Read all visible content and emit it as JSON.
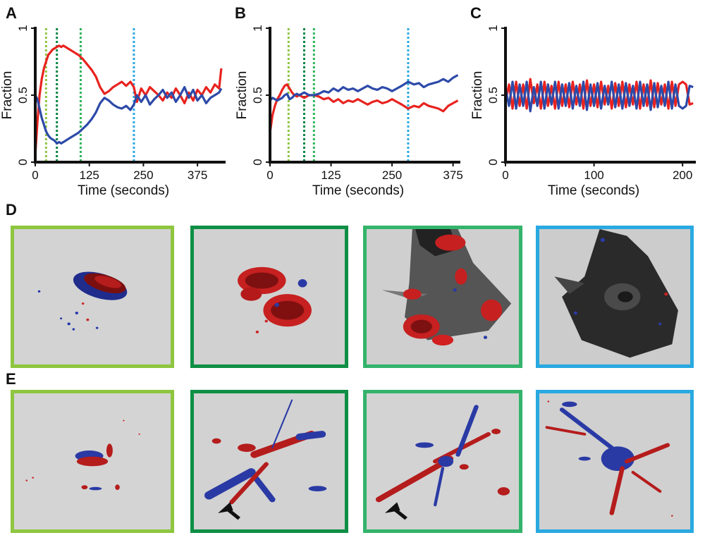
{
  "panel_labels": {
    "a": "A",
    "b": "B",
    "c": "C",
    "d": "D",
    "e": "E"
  },
  "colors": {
    "red_series": "#e8231f",
    "blue_series": "#2d4aa8",
    "marker_1": "#8ec63f",
    "marker_2": "#00853f",
    "marker_3": "#2cb55a",
    "marker_4": "#29a9e1",
    "frame_1": "#8ec63f",
    "frame_2": "#0e8f45",
    "frame_3": "#34b36b",
    "frame_4": "#29a9e1"
  },
  "chart_data": [
    {
      "id": "A",
      "type": "line",
      "xlabel": "Time (seconds)",
      "ylabel": "Fraction",
      "xlim": [
        0,
        440
      ],
      "ylim": [
        0,
        1
      ],
      "xticks": [
        0,
        125,
        250,
        375
      ],
      "yticks": [
        0,
        0.5,
        1
      ],
      "yticklabels": [
        "0",
        "0.5",
        "1"
      ],
      "markers": [
        {
          "x": 25,
          "color_key": "marker_1"
        },
        {
          "x": 50,
          "color_key": "marker_2"
        },
        {
          "x": 105,
          "color_key": "marker_3"
        },
        {
          "x": 228,
          "color_key": "marker_4"
        }
      ],
      "series": [
        {
          "name": "red",
          "color_key": "red_series",
          "x": [
            0,
            5,
            10,
            15,
            20,
            25,
            30,
            35,
            40,
            45,
            50,
            55,
            60,
            65,
            70,
            75,
            80,
            90,
            100,
            110,
            120,
            130,
            140,
            150,
            160,
            170,
            180,
            190,
            200,
            210,
            220,
            228,
            235,
            245,
            255,
            265,
            275,
            285,
            295,
            305,
            315,
            325,
            335,
            345,
            355,
            365,
            375,
            385,
            395,
            405,
            415,
            425,
            430
          ],
          "y": [
            0.05,
            0.3,
            0.5,
            0.62,
            0.7,
            0.75,
            0.8,
            0.82,
            0.84,
            0.85,
            0.86,
            0.87,
            0.86,
            0.87,
            0.86,
            0.85,
            0.84,
            0.82,
            0.8,
            0.77,
            0.73,
            0.69,
            0.64,
            0.56,
            0.51,
            0.53,
            0.56,
            0.58,
            0.6,
            0.57,
            0.6,
            0.56,
            0.45,
            0.55,
            0.5,
            0.56,
            0.53,
            0.5,
            0.46,
            0.52,
            0.48,
            0.55,
            0.5,
            0.44,
            0.52,
            0.46,
            0.54,
            0.5,
            0.56,
            0.52,
            0.58,
            0.55,
            0.7
          ]
        },
        {
          "name": "blue",
          "color_key": "blue_series",
          "x": [
            0,
            5,
            10,
            15,
            20,
            25,
            30,
            35,
            40,
            45,
            50,
            55,
            60,
            65,
            70,
            75,
            80,
            90,
            100,
            110,
            120,
            130,
            140,
            150,
            160,
            170,
            180,
            190,
            200,
            210,
            220,
            228,
            235,
            245,
            255,
            265,
            275,
            285,
            295,
            305,
            315,
            325,
            335,
            345,
            355,
            365,
            375,
            385,
            395,
            405,
            415,
            425,
            430
          ],
          "y": [
            0.5,
            0.47,
            0.4,
            0.33,
            0.28,
            0.23,
            0.2,
            0.18,
            0.17,
            0.16,
            0.14,
            0.15,
            0.14,
            0.15,
            0.16,
            0.17,
            0.18,
            0.2,
            0.22,
            0.25,
            0.28,
            0.32,
            0.37,
            0.44,
            0.48,
            0.46,
            0.43,
            0.41,
            0.4,
            0.42,
            0.39,
            0.43,
            0.5,
            0.45,
            0.5,
            0.43,
            0.47,
            0.5,
            0.54,
            0.48,
            0.52,
            0.45,
            0.5,
            0.56,
            0.48,
            0.54,
            0.46,
            0.5,
            0.44,
            0.48,
            0.5,
            0.52,
            0.55
          ]
        }
      ]
    },
    {
      "id": "B",
      "type": "line",
      "xlabel": "Time (seconds)",
      "ylabel": "Fraction",
      "xlim": [
        0,
        390
      ],
      "ylim": [
        0,
        1
      ],
      "xticks": [
        0,
        125,
        250,
        375
      ],
      "yticks": [
        0,
        0.5,
        1
      ],
      "yticklabels": [
        "0",
        "0.5",
        "1"
      ],
      "markers": [
        {
          "x": 38,
          "color_key": "marker_1"
        },
        {
          "x": 70,
          "color_key": "marker_2"
        },
        {
          "x": 90,
          "color_key": "marker_3"
        },
        {
          "x": 283,
          "color_key": "marker_4"
        }
      ],
      "series": [
        {
          "name": "red",
          "color_key": "red_series",
          "x": [
            0,
            5,
            10,
            15,
            20,
            25,
            30,
            35,
            40,
            45,
            50,
            55,
            60,
            70,
            80,
            90,
            100,
            110,
            120,
            130,
            140,
            150,
            160,
            170,
            180,
            190,
            200,
            210,
            220,
            230,
            240,
            250,
            260,
            270,
            283,
            295,
            305,
            315,
            325,
            335,
            345,
            355,
            365,
            375,
            385
          ],
          "y": [
            0.22,
            0.35,
            0.42,
            0.47,
            0.5,
            0.54,
            0.57,
            0.58,
            0.55,
            0.52,
            0.5,
            0.49,
            0.5,
            0.48,
            0.5,
            0.5,
            0.49,
            0.47,
            0.48,
            0.45,
            0.47,
            0.44,
            0.46,
            0.45,
            0.47,
            0.45,
            0.43,
            0.45,
            0.46,
            0.44,
            0.45,
            0.47,
            0.45,
            0.43,
            0.4,
            0.42,
            0.41,
            0.44,
            0.42,
            0.41,
            0.4,
            0.38,
            0.42,
            0.44,
            0.46
          ]
        },
        {
          "name": "blue",
          "color_key": "blue_series",
          "x": [
            0,
            5,
            10,
            15,
            20,
            25,
            30,
            35,
            40,
            45,
            50,
            55,
            60,
            70,
            80,
            90,
            100,
            110,
            120,
            130,
            140,
            150,
            160,
            170,
            180,
            190,
            200,
            210,
            220,
            230,
            240,
            250,
            260,
            270,
            283,
            295,
            305,
            315,
            325,
            335,
            345,
            355,
            365,
            375,
            385
          ],
          "y": [
            0.46,
            0.48,
            0.47,
            0.46,
            0.47,
            0.48,
            0.5,
            0.51,
            0.47,
            0.48,
            0.5,
            0.51,
            0.5,
            0.52,
            0.5,
            0.5,
            0.51,
            0.53,
            0.52,
            0.55,
            0.53,
            0.56,
            0.54,
            0.55,
            0.53,
            0.55,
            0.57,
            0.55,
            0.54,
            0.56,
            0.55,
            0.53,
            0.55,
            0.57,
            0.6,
            0.58,
            0.59,
            0.56,
            0.58,
            0.59,
            0.6,
            0.62,
            0.6,
            0.63,
            0.65
          ]
        }
      ]
    },
    {
      "id": "C",
      "type": "line",
      "xlabel": "Time (seconds)",
      "ylabel": "Fraction",
      "xlim": [
        0,
        215
      ],
      "ylim": [
        0,
        1
      ],
      "xticks": [
        0,
        100,
        200
      ],
      "yticks": [
        0,
        0.5,
        1
      ],
      "yticklabels": [
        "0",
        "0.5",
        "1"
      ],
      "markers": [],
      "series": [
        {
          "name": "red",
          "color_key": "red_series",
          "x": [
            0,
            4,
            8,
            12,
            16,
            20,
            24,
            28,
            32,
            36,
            40,
            44,
            48,
            52,
            56,
            60,
            64,
            68,
            72,
            76,
            80,
            84,
            88,
            92,
            96,
            100,
            104,
            108,
            112,
            116,
            120,
            124,
            128,
            132,
            136,
            140,
            144,
            148,
            152,
            156,
            160,
            164,
            168,
            172,
            176,
            180,
            184,
            188,
            192,
            196,
            200,
            204,
            208,
            212
          ],
          "y": [
            0.45,
            0.58,
            0.4,
            0.6,
            0.42,
            0.58,
            0.4,
            0.62,
            0.44,
            0.58,
            0.4,
            0.6,
            0.42,
            0.57,
            0.4,
            0.6,
            0.42,
            0.58,
            0.41,
            0.6,
            0.43,
            0.58,
            0.4,
            0.61,
            0.42,
            0.58,
            0.41,
            0.6,
            0.43,
            0.57,
            0.4,
            0.59,
            0.42,
            0.6,
            0.41,
            0.58,
            0.43,
            0.6,
            0.4,
            0.58,
            0.42,
            0.61,
            0.41,
            0.59,
            0.43,
            0.58,
            0.4,
            0.6,
            0.42,
            0.58,
            0.6,
            0.58,
            0.43,
            0.44
          ]
        },
        {
          "name": "blue",
          "color_key": "blue_series",
          "x": [
            0,
            4,
            8,
            12,
            16,
            20,
            24,
            28,
            32,
            36,
            40,
            44,
            48,
            52,
            56,
            60,
            64,
            68,
            72,
            76,
            80,
            84,
            88,
            92,
            96,
            100,
            104,
            108,
            112,
            116,
            120,
            124,
            128,
            132,
            136,
            140,
            144,
            148,
            152,
            156,
            160,
            164,
            168,
            172,
            176,
            180,
            184,
            188,
            192,
            196,
            200,
            204,
            208,
            212
          ],
          "y": [
            0.55,
            0.42,
            0.6,
            0.4,
            0.58,
            0.42,
            0.6,
            0.38,
            0.56,
            0.42,
            0.6,
            0.4,
            0.58,
            0.43,
            0.6,
            0.4,
            0.58,
            0.42,
            0.59,
            0.4,
            0.57,
            0.42,
            0.6,
            0.39,
            0.58,
            0.42,
            0.59,
            0.4,
            0.57,
            0.43,
            0.6,
            0.41,
            0.58,
            0.4,
            0.59,
            0.42,
            0.57,
            0.4,
            0.6,
            0.42,
            0.58,
            0.39,
            0.59,
            0.41,
            0.57,
            0.42,
            0.6,
            0.4,
            0.58,
            0.42,
            0.4,
            0.42,
            0.57,
            0.56
          ]
        }
      ]
    }
  ],
  "image_rows": {
    "d": {
      "label": "D",
      "frames": [
        {
          "id": "d1",
          "color_key": "frame_1"
        },
        {
          "id": "d2",
          "color_key": "frame_2"
        },
        {
          "id": "d3",
          "color_key": "frame_3"
        },
        {
          "id": "d4",
          "color_key": "frame_4"
        }
      ]
    },
    "e": {
      "label": "E",
      "frames": [
        {
          "id": "e1",
          "color_key": "frame_1"
        },
        {
          "id": "e2",
          "color_key": "frame_2"
        },
        {
          "id": "e3",
          "color_key": "frame_3"
        },
        {
          "id": "e4",
          "color_key": "frame_4"
        }
      ]
    }
  }
}
